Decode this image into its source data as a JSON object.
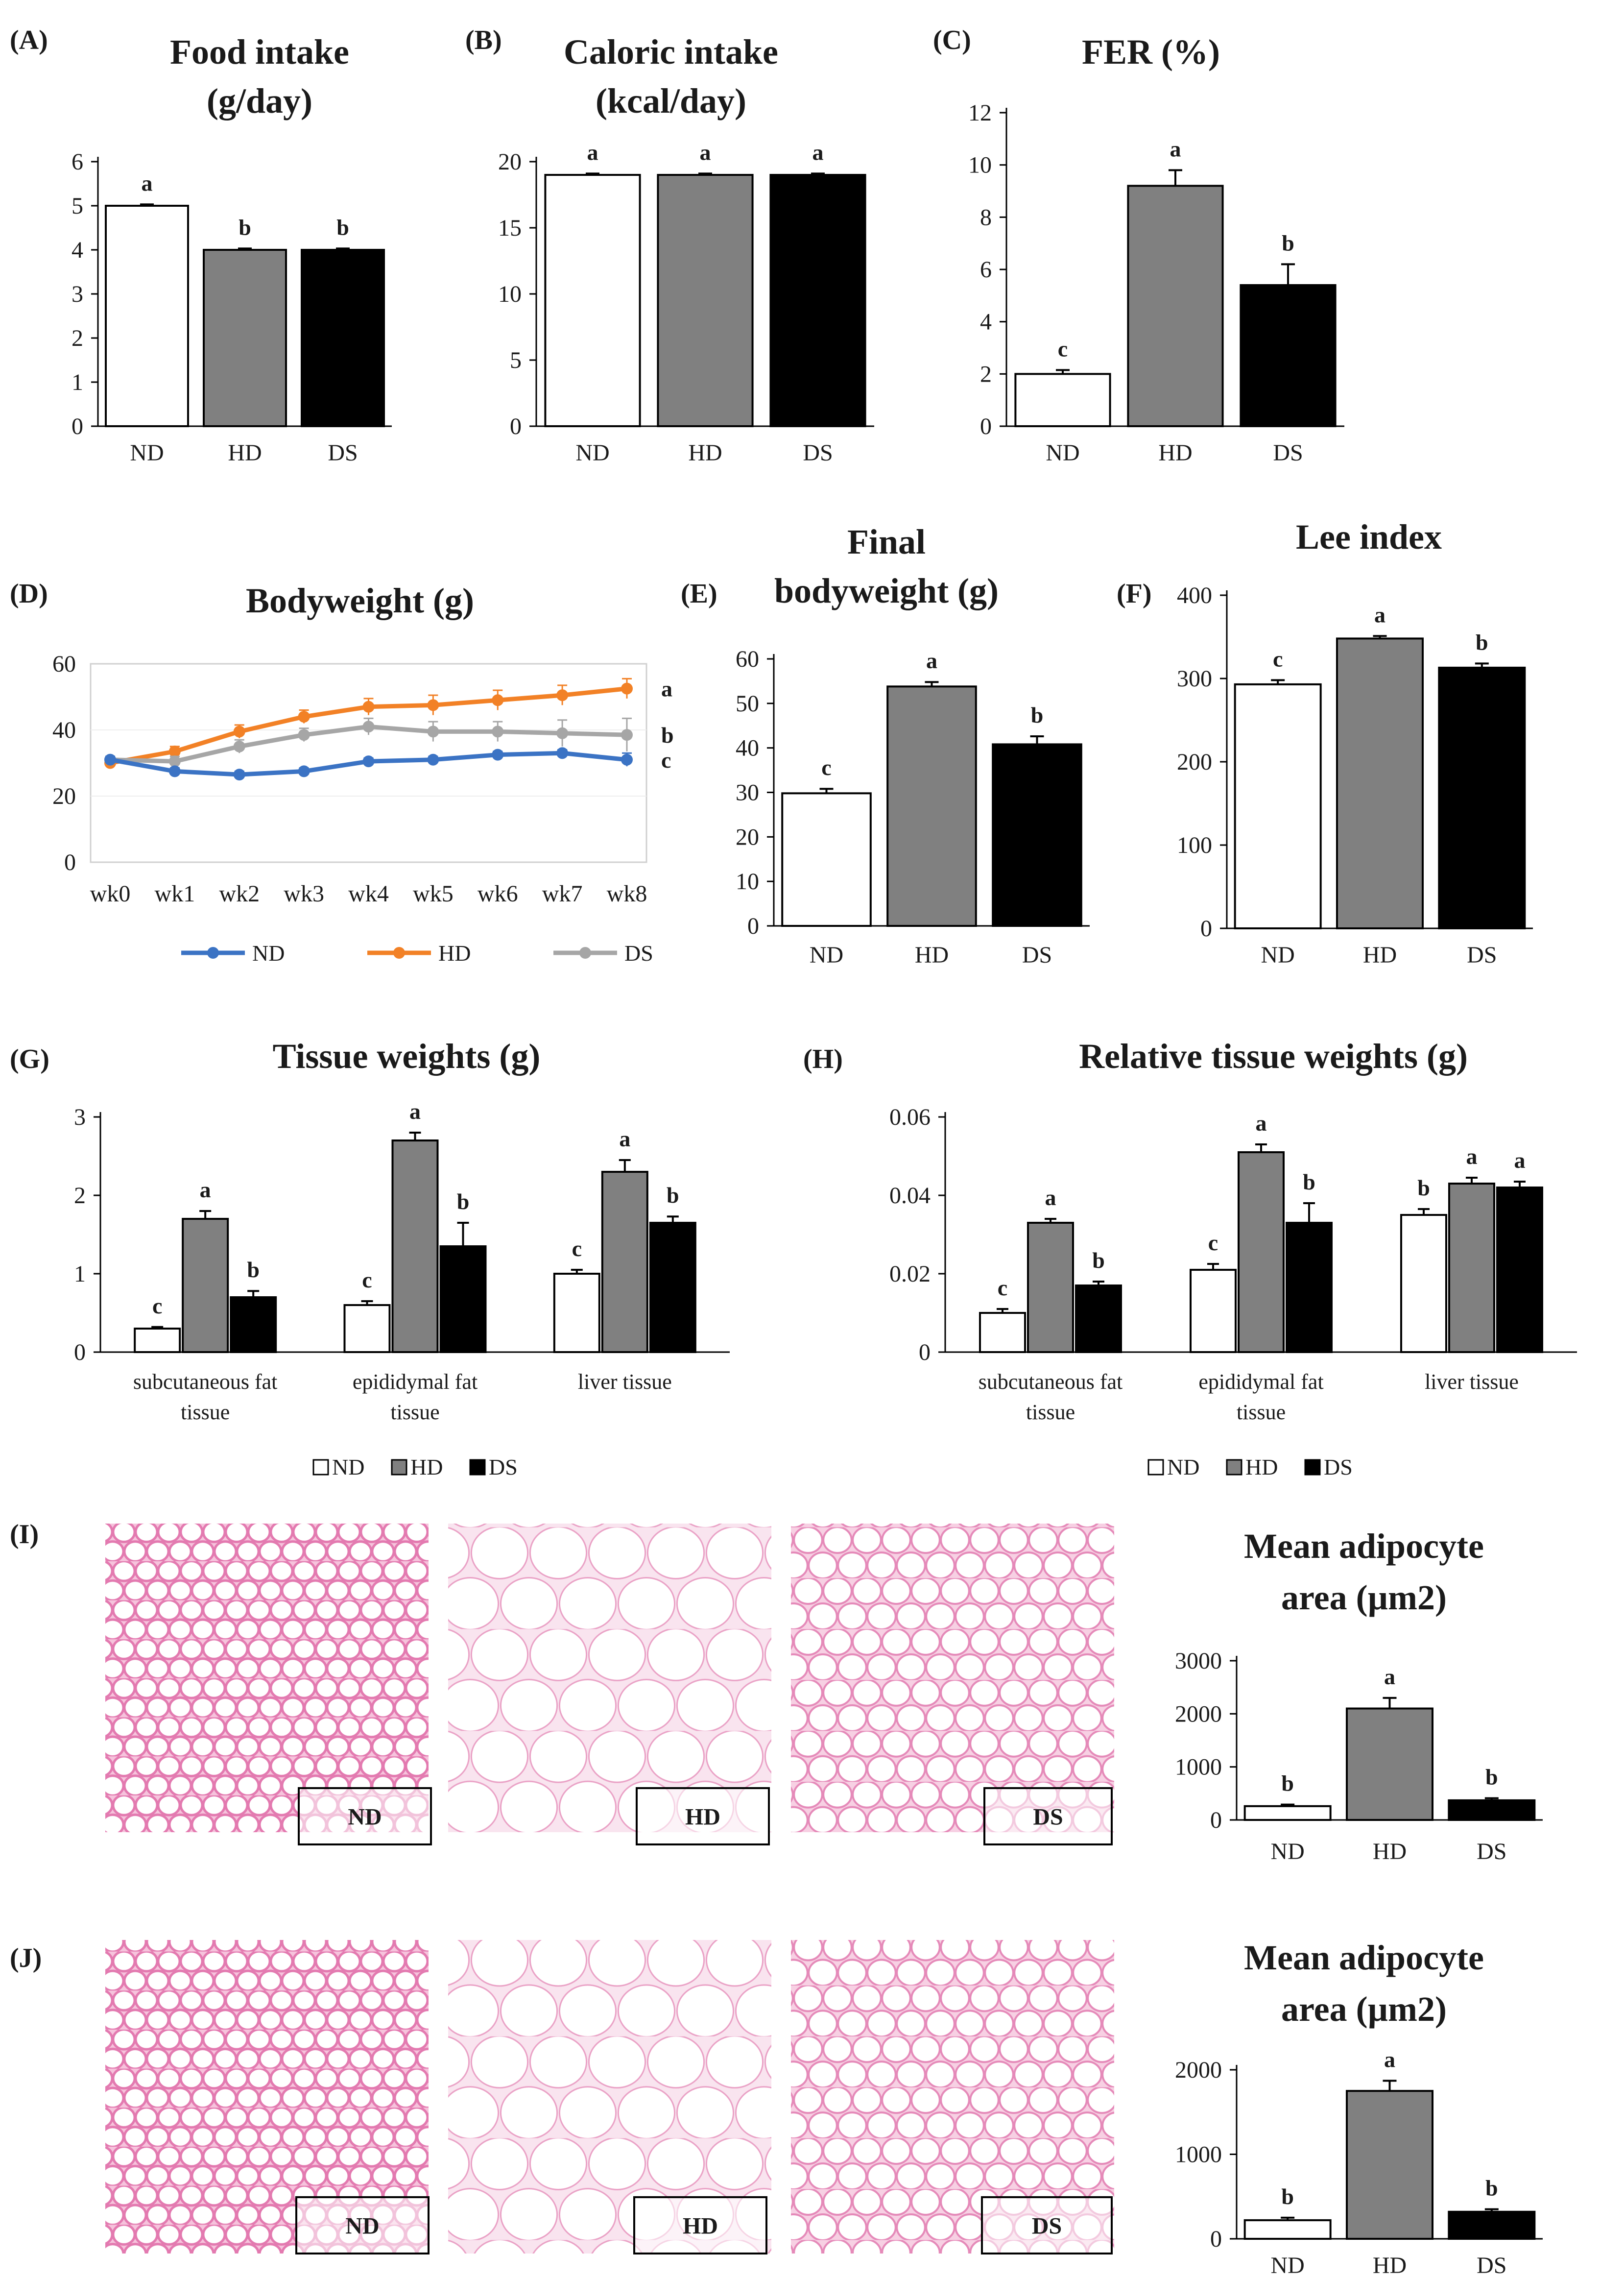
{
  "groups": [
    "ND",
    "HD",
    "DS"
  ],
  "colors": {
    "ND": "#ffffff",
    "HD": "#808080",
    "DS": "#000000",
    "line_ND": "#3b73c4",
    "line_HD": "#f28126",
    "line_DS": "#a6a6a6",
    "edge": "#000000",
    "pink": "#e0609a"
  },
  "chart_data": [
    {
      "id": "A",
      "panel_label": "(A)",
      "type": "bar",
      "title_lines": [
        "Food intake",
        "(g/day)"
      ],
      "categories": [
        "ND",
        "HD",
        "DS"
      ],
      "values": [
        5.0,
        4.0,
        4.0
      ],
      "errors": [
        0.03,
        0.03,
        0.03
      ],
      "letters": [
        "a",
        "b",
        "b"
      ],
      "ylim": [
        0,
        6
      ],
      "yticks": [
        "0",
        "1",
        "2",
        "3",
        "4",
        "5",
        "6"
      ]
    },
    {
      "id": "B",
      "panel_label": "(B)",
      "type": "bar",
      "title_lines": [
        "Caloric intake",
        "(kcal/day)"
      ],
      "categories": [
        "ND",
        "HD",
        "DS"
      ],
      "values": [
        19.0,
        19.0,
        19.0
      ],
      "errors": [
        0.1,
        0.1,
        0.1
      ],
      "letters": [
        "a",
        "a",
        "a"
      ],
      "ylim": [
        0,
        20
      ],
      "yticks": [
        "0",
        "5",
        "10",
        "15",
        "20"
      ]
    },
    {
      "id": "C",
      "panel_label": "(C)",
      "type": "bar",
      "title_lines": [
        "FER (%)"
      ],
      "categories": [
        "ND",
        "HD",
        "DS"
      ],
      "values": [
        2.0,
        9.2,
        5.4
      ],
      "errors": [
        0.15,
        0.6,
        0.8
      ],
      "letters": [
        "c",
        "a",
        "b"
      ],
      "ylim": [
        0,
        12
      ],
      "yticks": [
        "0",
        "2",
        "4",
        "6",
        "8",
        "10",
        "12"
      ]
    },
    {
      "id": "D",
      "panel_label": "(D)",
      "type": "line",
      "title_lines": [
        "Bodyweight (g)"
      ],
      "x": [
        "wk0",
        "wk1",
        "wk2",
        "wk3",
        "wk4",
        "wk5",
        "wk6",
        "wk7",
        "wk8"
      ],
      "ylim": [
        0,
        60
      ],
      "yticks": [
        "0",
        "20",
        "40",
        "60"
      ],
      "series": [
        {
          "name": "ND",
          "values": [
            31,
            27.5,
            26.5,
            27.5,
            30.5,
            31,
            32.5,
            33,
            31
          ],
          "errors": [
            1,
            1,
            1,
            1,
            1,
            1,
            1,
            1,
            2
          ],
          "letter": "c"
        },
        {
          "name": "HD",
          "values": [
            30,
            33.5,
            39.5,
            44,
            47,
            47.5,
            49,
            50.5,
            52.5
          ],
          "errors": [
            1,
            1.5,
            2,
            2,
            2.5,
            3,
            3,
            3,
            3
          ],
          "letter": "a"
        },
        {
          "name": "DS",
          "values": [
            31,
            30.5,
            35,
            38.5,
            41,
            39.5,
            39.5,
            39,
            38.5
          ],
          "errors": [
            1,
            1.5,
            2,
            2,
            2.5,
            3,
            3,
            4,
            5
          ],
          "letter": "b"
        }
      ]
    },
    {
      "id": "E",
      "panel_label": "(E)",
      "type": "bar",
      "title_lines": [
        "Final",
        "bodyweight (g)"
      ],
      "categories": [
        "ND",
        "HD",
        "DS"
      ],
      "values": [
        29.8,
        53.8,
        40.8
      ],
      "errors": [
        1,
        1,
        1.8
      ],
      "letters": [
        "c",
        "a",
        "b"
      ],
      "ylim": [
        0,
        60
      ],
      "yticks": [
        "0",
        "10",
        "20",
        "30",
        "40",
        "50",
        "60"
      ]
    },
    {
      "id": "F",
      "panel_label": "(F)",
      "type": "bar",
      "title_lines": [
        "Lee index"
      ],
      "categories": [
        "ND",
        "HD",
        "DS"
      ],
      "values": [
        293,
        348,
        313
      ],
      "errors": [
        5,
        3,
        5
      ],
      "letters": [
        "c",
        "a",
        "b"
      ],
      "ylim": [
        0,
        400
      ],
      "yticks": [
        "0",
        "100",
        "200",
        "300",
        "400"
      ]
    },
    {
      "id": "G",
      "panel_label": "(G)",
      "type": "grouped_bar",
      "title_lines": [
        "Tissue weights (g)"
      ],
      "categories": [
        [
          "subcutaneous fat",
          "tissue"
        ],
        [
          "epididymal fat",
          "tissue"
        ],
        [
          "liver tissue"
        ]
      ],
      "ylim": [
        0,
        3
      ],
      "yticks": [
        "0",
        "1",
        "2",
        "3"
      ],
      "series": [
        {
          "name": "ND",
          "values": [
            0.3,
            0.6,
            1.0
          ],
          "errors": [
            0.02,
            0.05,
            0.05
          ],
          "letters": [
            "c",
            "c",
            "c"
          ]
        },
        {
          "name": "HD",
          "values": [
            1.7,
            2.7,
            2.3
          ],
          "errors": [
            0.1,
            0.1,
            0.15
          ],
          "letters": [
            "a",
            "a",
            "a"
          ]
        },
        {
          "name": "DS",
          "values": [
            0.7,
            1.35,
            1.65
          ],
          "errors": [
            0.08,
            0.3,
            0.08
          ],
          "letters": [
            "b",
            "b",
            "b"
          ]
        }
      ]
    },
    {
      "id": "H",
      "panel_label": "(H)",
      "type": "grouped_bar",
      "title_lines": [
        "Relative tissue weights (g)"
      ],
      "categories": [
        [
          "subcutaneous fat",
          "tissue"
        ],
        [
          "epididymal fat",
          "tissue"
        ],
        [
          "liver tissue"
        ]
      ],
      "ylim": [
        0,
        0.06
      ],
      "yticks": [
        "0",
        "0.02",
        "0.04",
        "0.06"
      ],
      "series": [
        {
          "name": "ND",
          "values": [
            0.01,
            0.021,
            0.035
          ],
          "errors": [
            0.001,
            0.0015,
            0.0015
          ],
          "letters": [
            "c",
            "c",
            "b"
          ]
        },
        {
          "name": "HD",
          "values": [
            0.033,
            0.051,
            0.043
          ],
          "errors": [
            0.001,
            0.002,
            0.0015
          ],
          "letters": [
            "a",
            "a",
            "a"
          ]
        },
        {
          "name": "DS",
          "values": [
            0.017,
            0.033,
            0.042
          ],
          "errors": [
            0.001,
            0.005,
            0.0015
          ],
          "letters": [
            "b",
            "b",
            "a"
          ]
        }
      ]
    },
    {
      "id": "I",
      "panel_label": "(I)",
      "type": "bar",
      "title_lines": [
        "Mean adipocyte",
        "area (µm2)"
      ],
      "categories": [
        "ND",
        "HD",
        "DS"
      ],
      "values": [
        260,
        2100,
        370
      ],
      "errors": [
        30,
        200,
        40
      ],
      "letters": [
        "b",
        "a",
        "b"
      ],
      "ylim": [
        0,
        3000
      ],
      "yticks": [
        "0",
        "1000",
        "2000",
        "3000"
      ],
      "micrograph_labels": [
        "ND",
        "HD",
        "DS"
      ]
    },
    {
      "id": "J",
      "panel_label": "(J)",
      "type": "bar",
      "title_lines": [
        "Mean adipocyte",
        "area (µm2)"
      ],
      "categories": [
        "ND",
        "HD",
        "DS"
      ],
      "values": [
        220,
        1750,
        320
      ],
      "errors": [
        30,
        120,
        30
      ],
      "letters": [
        "b",
        "a",
        "b"
      ],
      "ylim": [
        0,
        2000
      ],
      "yticks": [
        "0",
        "1000",
        "2000"
      ],
      "micrograph_labels": [
        "ND",
        "HD",
        "DS"
      ]
    }
  ]
}
